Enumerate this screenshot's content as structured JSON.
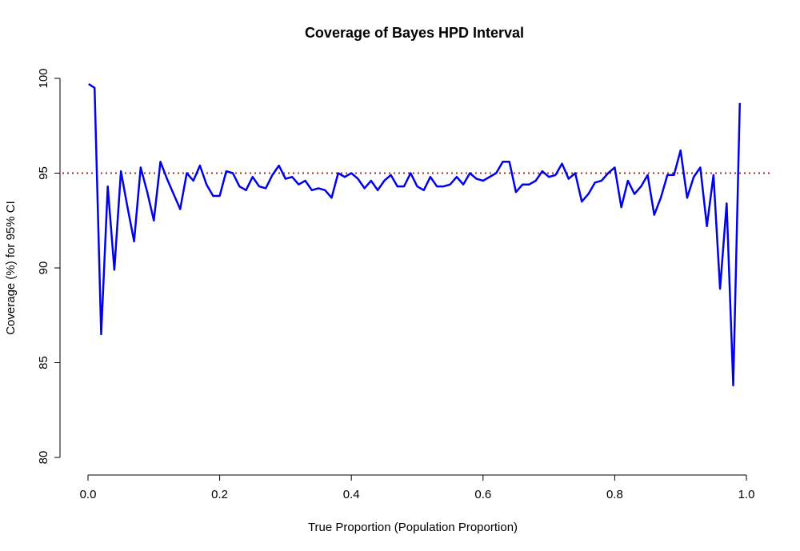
{
  "chart_data": {
    "type": "line",
    "title": "Coverage of Bayes HPD Interval",
    "x_label": "True Proportion (Population Proportion)",
    "y_label": "Coverage (%) for 95% CI",
    "x": [
      0.001,
      0.01,
      0.02,
      0.03,
      0.04,
      0.05,
      0.06,
      0.07,
      0.08,
      0.09,
      0.1,
      0.11,
      0.12,
      0.13,
      0.14,
      0.15,
      0.16,
      0.17,
      0.18,
      0.19,
      0.2,
      0.21,
      0.22,
      0.23,
      0.24,
      0.25,
      0.26,
      0.27,
      0.28,
      0.29,
      0.3,
      0.31,
      0.32,
      0.33,
      0.34,
      0.35,
      0.36,
      0.37,
      0.38,
      0.39,
      0.4,
      0.41,
      0.42,
      0.43,
      0.44,
      0.45,
      0.46,
      0.47,
      0.48,
      0.49,
      0.5,
      0.51,
      0.52,
      0.53,
      0.54,
      0.55,
      0.56,
      0.57,
      0.58,
      0.59,
      0.6,
      0.61,
      0.62,
      0.63,
      0.64,
      0.65,
      0.66,
      0.67,
      0.68,
      0.69,
      0.7,
      0.71,
      0.72,
      0.73,
      0.74,
      0.75,
      0.76,
      0.77,
      0.78,
      0.79,
      0.8,
      0.81,
      0.82,
      0.83,
      0.84,
      0.85,
      0.86,
      0.87,
      0.88,
      0.89,
      0.9,
      0.91,
      0.92,
      0.93,
      0.94,
      0.95,
      0.96,
      0.97,
      0.98,
      0.99
    ],
    "series": [
      {
        "name": "Coverage",
        "color": "#0000ee",
        "values": [
          99.7,
          99.5,
          86.5,
          94.3,
          89.9,
          95.1,
          93.2,
          91.4,
          95.3,
          94.0,
          92.5,
          95.6,
          94.7,
          93.9,
          93.1,
          95.0,
          94.6,
          95.4,
          94.4,
          93.8,
          93.8,
          95.1,
          95.0,
          94.3,
          94.1,
          94.8,
          94.3,
          94.2,
          94.9,
          95.4,
          94.7,
          94.8,
          94.4,
          94.6,
          94.1,
          94.2,
          94.1,
          93.7,
          95.0,
          94.8,
          95.0,
          94.7,
          94.2,
          94.6,
          94.1,
          94.6,
          94.9,
          94.3,
          94.3,
          95.0,
          94.3,
          94.1,
          94.8,
          94.3,
          94.3,
          94.4,
          94.8,
          94.4,
          95.0,
          94.7,
          94.6,
          94.8,
          95.0,
          95.6,
          95.6,
          94.0,
          94.4,
          94.4,
          94.6,
          95.1,
          94.8,
          94.9,
          95.5,
          94.7,
          95.0,
          93.5,
          93.9,
          94.5,
          94.6,
          95.0,
          95.3,
          93.2,
          94.6,
          93.9,
          94.3,
          94.9,
          92.8,
          93.7,
          94.9,
          94.9,
          96.2,
          93.7,
          94.8,
          95.3,
          92.2,
          94.9,
          88.9,
          93.4,
          83.8,
          98.7
        ]
      }
    ],
    "reference_line": {
      "value": 95,
      "color": "#a0302a"
    },
    "xlim": [
      0,
      1
    ],
    "xticks": [
      {
        "value": 0,
        "label": "0.0"
      },
      0.2,
      0.4,
      0.6,
      0.8,
      {
        "value": 1,
        "label": "1.0"
      }
    ],
    "ylim": [
      80,
      100
    ],
    "yticks": [
      80,
      85,
      90,
      95,
      100
    ]
  }
}
